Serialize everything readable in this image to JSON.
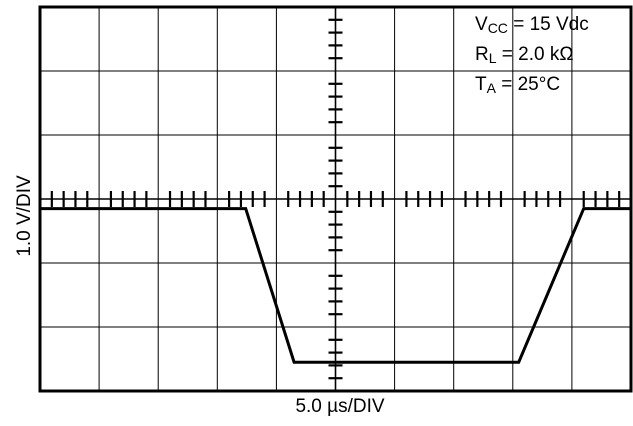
{
  "chart_data": {
    "type": "line",
    "title": "",
    "xlabel": "5.0 µs/DIV",
    "ylabel": "1.0 V/DIV",
    "x_divisions": 10,
    "y_divisions": 6,
    "xlim": [
      0,
      10
    ],
    "ylim": [
      -3,
      3
    ],
    "grid": true,
    "x_unit": "div (5.0 µs/DIV)",
    "y_unit": "div (1.0 V/DIV)",
    "series": [
      {
        "x": [
          0,
          3.48,
          4.3,
          8.1,
          9.2,
          10
        ],
        "y": [
          -0.15,
          -0.15,
          -2.55,
          -2.55,
          -0.15,
          -0.15
        ]
      }
    ]
  },
  "conditions": {
    "vcc_sym": "V",
    "vcc_sub": "CC",
    "vcc_val": " = 15 Vdc",
    "rl_sym": "R",
    "rl_sub": "L",
    "rl_val": " = 2.0 kΩ",
    "ta_sym": "T",
    "ta_sub": "A",
    "ta_val": " = 25°C"
  },
  "colors": {
    "trace": "#000000",
    "grid": "#000000"
  }
}
